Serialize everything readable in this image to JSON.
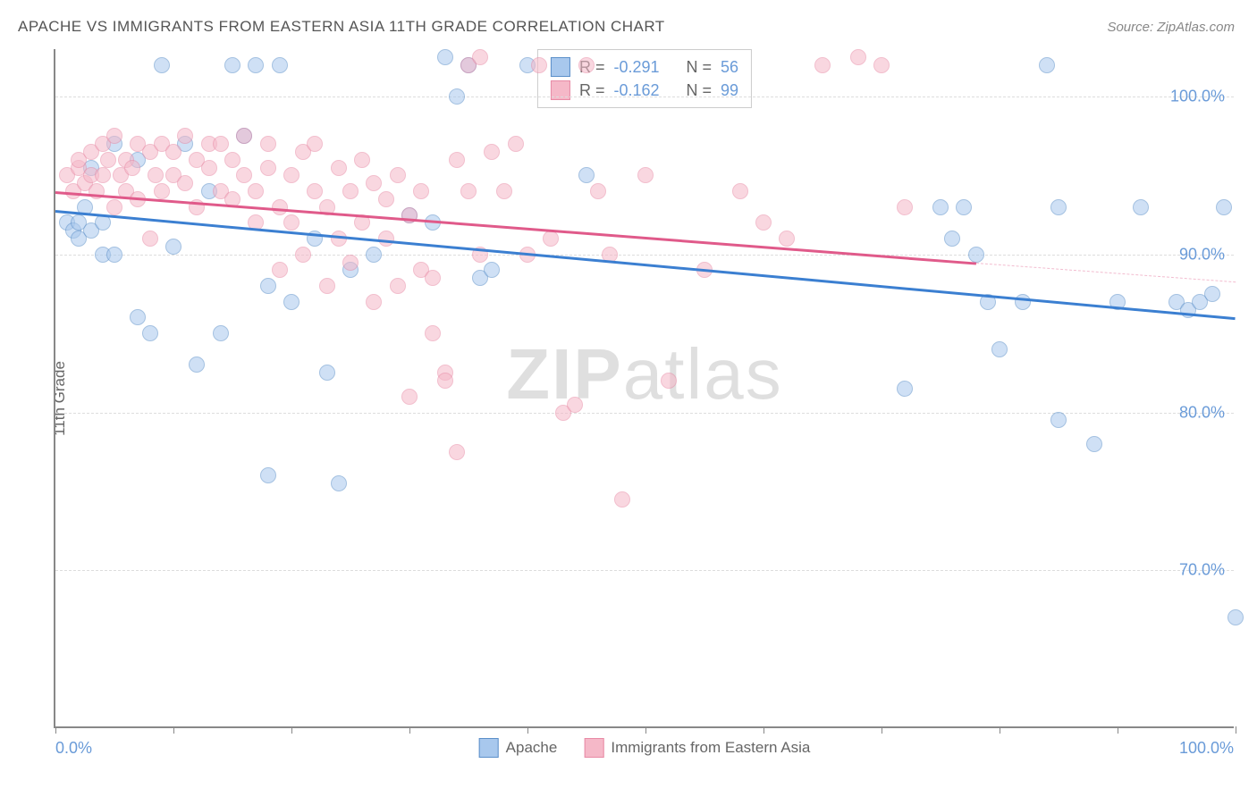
{
  "title": "APACHE VS IMMIGRANTS FROM EASTERN ASIA 11TH GRADE CORRELATION CHART",
  "source": "Source: ZipAtlas.com",
  "y_axis_title": "11th Grade",
  "watermark_bold": "ZIP",
  "watermark_light": "atlas",
  "chart": {
    "type": "scatter",
    "background_color": "#ffffff",
    "grid_color": "#dddddd",
    "axis_color": "#888888",
    "xlim": [
      0,
      100
    ],
    "ylim": [
      60,
      103
    ],
    "x_ticks": [
      0,
      10,
      20,
      30,
      40,
      50,
      60,
      70,
      80,
      90,
      100
    ],
    "x_tick_labels": {
      "0": "0.0%",
      "100": "100.0%"
    },
    "y_ticks": [
      70,
      80,
      90,
      100
    ],
    "y_tick_labels": {
      "70": "70.0%",
      "80": "80.0%",
      "90": "90.0%",
      "100": "100.0%"
    },
    "marker_size": 18,
    "marker_opacity": 0.55,
    "label_fontsize": 18,
    "label_color": "#6a9bd8",
    "title_fontsize": 17,
    "title_color": "#555555",
    "series": [
      {
        "name": "Apache",
        "color_fill": "#a8c8ed",
        "color_stroke": "#5b8fc9",
        "R": "-0.291",
        "N": "56",
        "trend": {
          "x1": 0,
          "y1": 92.8,
          "x2": 100,
          "y2": 86.0,
          "color": "#3b7fd1",
          "width": 2.5
        },
        "points": [
          [
            1,
            92
          ],
          [
            1.5,
            91.5
          ],
          [
            2,
            92
          ],
          [
            2,
            91
          ],
          [
            2.5,
            93
          ],
          [
            3,
            91.5
          ],
          [
            3,
            95.5
          ],
          [
            4,
            90
          ],
          [
            4,
            92
          ],
          [
            5,
            90
          ],
          [
            5,
            97
          ],
          [
            7,
            96
          ],
          [
            7,
            86
          ],
          [
            8,
            85
          ],
          [
            9,
            102
          ],
          [
            10,
            90.5
          ],
          [
            11,
            97
          ],
          [
            12,
            83
          ],
          [
            13,
            94
          ],
          [
            14,
            85
          ],
          [
            15,
            102
          ],
          [
            16,
            97.5
          ],
          [
            17,
            102
          ],
          [
            18,
            88
          ],
          [
            18,
            76
          ],
          [
            19,
            102
          ],
          [
            20,
            87
          ],
          [
            22,
            91
          ],
          [
            23,
            82.5
          ],
          [
            24,
            75.5
          ],
          [
            25,
            89
          ],
          [
            27,
            90
          ],
          [
            30,
            92.5
          ],
          [
            32,
            92
          ],
          [
            33,
            102.5
          ],
          [
            34,
            100
          ],
          [
            35,
            102
          ],
          [
            36,
            88.5
          ],
          [
            37,
            89
          ],
          [
            40,
            102
          ],
          [
            45,
            95
          ],
          [
            72,
            81.5
          ],
          [
            75,
            93
          ],
          [
            76,
            91
          ],
          [
            77,
            93
          ],
          [
            78,
            90
          ],
          [
            79,
            87
          ],
          [
            80,
            84
          ],
          [
            82,
            87
          ],
          [
            84,
            102
          ],
          [
            85,
            93
          ],
          [
            85,
            79.5
          ],
          [
            88,
            78
          ],
          [
            90,
            87
          ],
          [
            92,
            93
          ],
          [
            95,
            87
          ],
          [
            96,
            86.5
          ],
          [
            97,
            87
          ],
          [
            98,
            87.5
          ],
          [
            99,
            93
          ],
          [
            100,
            67
          ]
        ]
      },
      {
        "name": "Immigrants from Eastern Asia",
        "color_fill": "#f5b8c8",
        "color_stroke": "#e88aa5",
        "R": "-0.162",
        "N": "99",
        "trend": {
          "x1": 0,
          "y1": 94.0,
          "x2": 78,
          "y2": 89.5,
          "dash_to_x": 100,
          "dash_to_y": 88.3,
          "color": "#e05a8a",
          "width": 2.5
        },
        "points": [
          [
            1,
            95
          ],
          [
            1.5,
            94
          ],
          [
            2,
            95.5
          ],
          [
            2,
            96
          ],
          [
            2.5,
            94.5
          ],
          [
            3,
            95
          ],
          [
            3,
            96.5
          ],
          [
            3.5,
            94
          ],
          [
            4,
            97
          ],
          [
            4,
            95
          ],
          [
            4.5,
            96
          ],
          [
            5,
            93
          ],
          [
            5,
            97.5
          ],
          [
            5.5,
            95
          ],
          [
            6,
            94
          ],
          [
            6,
            96
          ],
          [
            6.5,
            95.5
          ],
          [
            7,
            97
          ],
          [
            7,
            93.5
          ],
          [
            8,
            91
          ],
          [
            8,
            96.5
          ],
          [
            8.5,
            95
          ],
          [
            9,
            97
          ],
          [
            9,
            94
          ],
          [
            10,
            96.5
          ],
          [
            10,
            95
          ],
          [
            11,
            97.5
          ],
          [
            11,
            94.5
          ],
          [
            12,
            96
          ],
          [
            12,
            93
          ],
          [
            13,
            97
          ],
          [
            13,
            95.5
          ],
          [
            14,
            94
          ],
          [
            14,
            97
          ],
          [
            15,
            96
          ],
          [
            15,
            93.5
          ],
          [
            16,
            95
          ],
          [
            16,
            97.5
          ],
          [
            17,
            94
          ],
          [
            17,
            92
          ],
          [
            18,
            95.5
          ],
          [
            18,
            97
          ],
          [
            19,
            93
          ],
          [
            19,
            89
          ],
          [
            20,
            92
          ],
          [
            20,
            95
          ],
          [
            21,
            96.5
          ],
          [
            21,
            90
          ],
          [
            22,
            94
          ],
          [
            22,
            97
          ],
          [
            23,
            93
          ],
          [
            23,
            88
          ],
          [
            24,
            95.5
          ],
          [
            24,
            91
          ],
          [
            25,
            94
          ],
          [
            25,
            89.5
          ],
          [
            26,
            92
          ],
          [
            26,
            96
          ],
          [
            27,
            94.5
          ],
          [
            27,
            87
          ],
          [
            28,
            91
          ],
          [
            28,
            93.5
          ],
          [
            29,
            95
          ],
          [
            29,
            88
          ],
          [
            30,
            92.5
          ],
          [
            30,
            81
          ],
          [
            31,
            94
          ],
          [
            31,
            89
          ],
          [
            32,
            85
          ],
          [
            32,
            88.5
          ],
          [
            33,
            82.5
          ],
          [
            33,
            82
          ],
          [
            34,
            96
          ],
          [
            34,
            77.5
          ],
          [
            35,
            102
          ],
          [
            35,
            94
          ],
          [
            36,
            90
          ],
          [
            36,
            102.5
          ],
          [
            37,
            96.5
          ],
          [
            38,
            94
          ],
          [
            39,
            97
          ],
          [
            40,
            90
          ],
          [
            41,
            102
          ],
          [
            42,
            91
          ],
          [
            43,
            80
          ],
          [
            44,
            80.5
          ],
          [
            45,
            102
          ],
          [
            46,
            94
          ],
          [
            47,
            90
          ],
          [
            48,
            74.5
          ],
          [
            50,
            95
          ],
          [
            52,
            82
          ],
          [
            55,
            89
          ],
          [
            58,
            94
          ],
          [
            60,
            92
          ],
          [
            62,
            91
          ],
          [
            65,
            102
          ],
          [
            68,
            102.5
          ],
          [
            70,
            102
          ],
          [
            72,
            93
          ]
        ]
      }
    ]
  },
  "legend_stats": {
    "r_label": "R =",
    "n_label": "N ="
  },
  "bottom_legend": {
    "series1": "Apache",
    "series2": "Immigrants from Eastern Asia"
  }
}
